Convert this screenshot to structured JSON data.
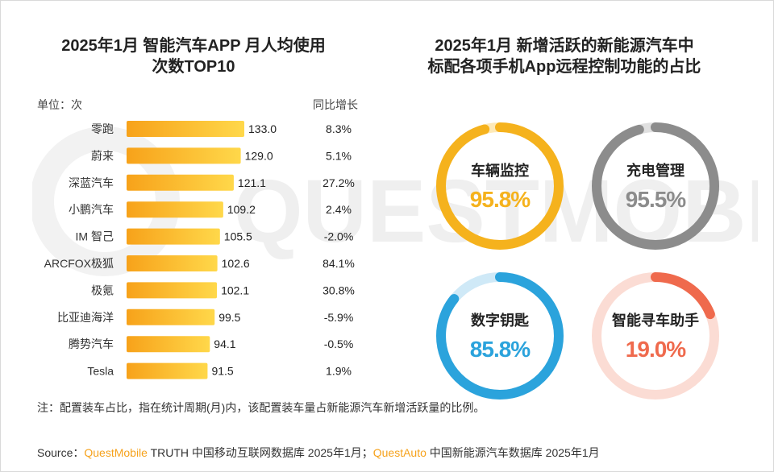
{
  "left_title_line1": "2025年1月 智能汽车APP 月人均使用",
  "left_title_line2": "次数TOP10",
  "right_title_line1": "2025年1月 新增活跃的新能源汽车中",
  "right_title_line2": "标配各项手机App远程控制功能的占比",
  "unit_label": "单位：次",
  "yoy_header": "同比增长",
  "watermark_text": "QUESTMOBILE",
  "colors": {
    "bar_gradient_start": "#f7a21a",
    "bar_gradient_end": "#ffd84a",
    "yellow": "#f5b21d",
    "gray": "#8c8c8c",
    "blue": "#2ba3dc",
    "red": "#ef6a4d",
    "brand": "#f6a21c"
  },
  "chart_data": [
    {
      "type": "bar",
      "orientation": "horizontal",
      "title": "2025年1月 智能汽车APP 月人均使用次数TOP10",
      "unit": "单位：次",
      "categories": [
        "零跑",
        "蔚来",
        "深蓝汽车",
        "小鹏汽车",
        "IM 智己",
        "ARCFOX极狐",
        "极氪",
        "比亚迪海洋",
        "腾势汽车",
        "Tesla"
      ],
      "values": [
        133.0,
        129.0,
        121.1,
        109.2,
        105.5,
        102.6,
        102.1,
        99.5,
        94.1,
        91.5
      ],
      "value_labels": [
        "133.0",
        "129.0",
        "121.1",
        "109.2",
        "105.5",
        "102.6",
        "102.1",
        "99.5",
        "94.1",
        "91.5"
      ],
      "yoy_header": "同比增长",
      "yoy_labels": [
        "8.3%",
        "5.1%",
        "27.2%",
        "2.4%",
        "-2.0%",
        "84.1%",
        "30.8%",
        "-5.9%",
        "-0.5%",
        "1.9%"
      ],
      "xlim": [
        0,
        140
      ]
    },
    {
      "type": "pie",
      "title": "2025年1月 新增活跃的新能源汽车中标配各项手机App远程控制功能的占比",
      "items": [
        {
          "label": "车辆监控",
          "value": 95.8,
          "value_label": "95.8%",
          "color": "#f5b21d",
          "track": "#fde9b8"
        },
        {
          "label": "充电管理",
          "value": 95.5,
          "value_label": "95.5%",
          "color": "#8c8c8c",
          "track": "#e0e0e0"
        },
        {
          "label": "数字钥匙",
          "value": 85.8,
          "value_label": "85.8%",
          "color": "#2ba3dc",
          "track": "#cfe9f7"
        },
        {
          "label": "智能寻车助手",
          "value": 19.0,
          "value_label": "19.0%",
          "color": "#ef6a4d",
          "track": "#fbdcd4"
        }
      ]
    }
  ],
  "note": "注：配置装车占比，指在统计周期(月)内，该配置装车量占新能源汽车新增活跃量的比例。",
  "source_prefix": "Source：",
  "source_brand1": "QuestMobile",
  "source_mid": " TRUTH 中国移动互联网数据库 2025年1月；",
  "source_brand2": "QuestAuto",
  "source_suffix": " 中国新能源汽车数据库 2025年1月"
}
